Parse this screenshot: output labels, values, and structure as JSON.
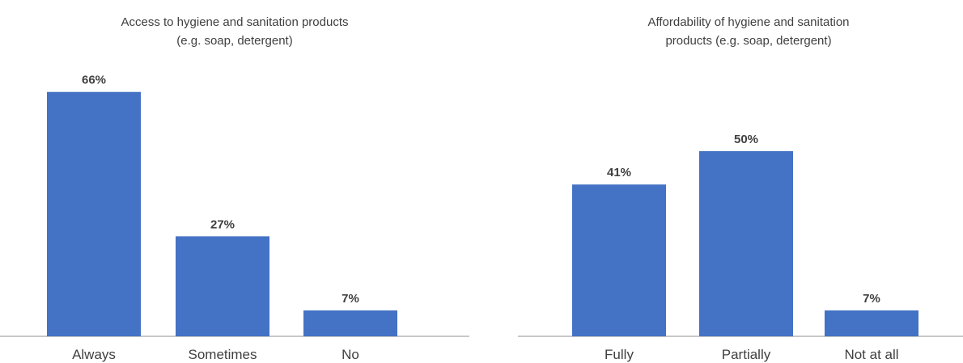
{
  "chart_data": [
    {
      "type": "bar",
      "title_lines": [
        "Access to hygiene and sanitation products",
        "(e.g. soap, detergent)"
      ],
      "categories": [
        "Always",
        "Sometimes",
        "No"
      ],
      "values": [
        66,
        27,
        7
      ],
      "value_labels": [
        "66%",
        "27%",
        "7%"
      ],
      "xlabel": "",
      "ylabel": "",
      "ylim": [
        0,
        100
      ],
      "grid": false,
      "bar_color": "#4472C4"
    },
    {
      "type": "bar",
      "title_lines": [
        "Affordability of hygiene and sanitation",
        "products (e.g. soap, detergent)"
      ],
      "categories": [
        "Fully",
        "Partially",
        "Not at all"
      ],
      "values": [
        41,
        50,
        7
      ],
      "value_labels": [
        "41%",
        "50%",
        "7%"
      ],
      "xlabel": "",
      "ylabel": "",
      "ylim": [
        0,
        100
      ],
      "grid": false,
      "bar_color": "#4472C4"
    }
  ]
}
